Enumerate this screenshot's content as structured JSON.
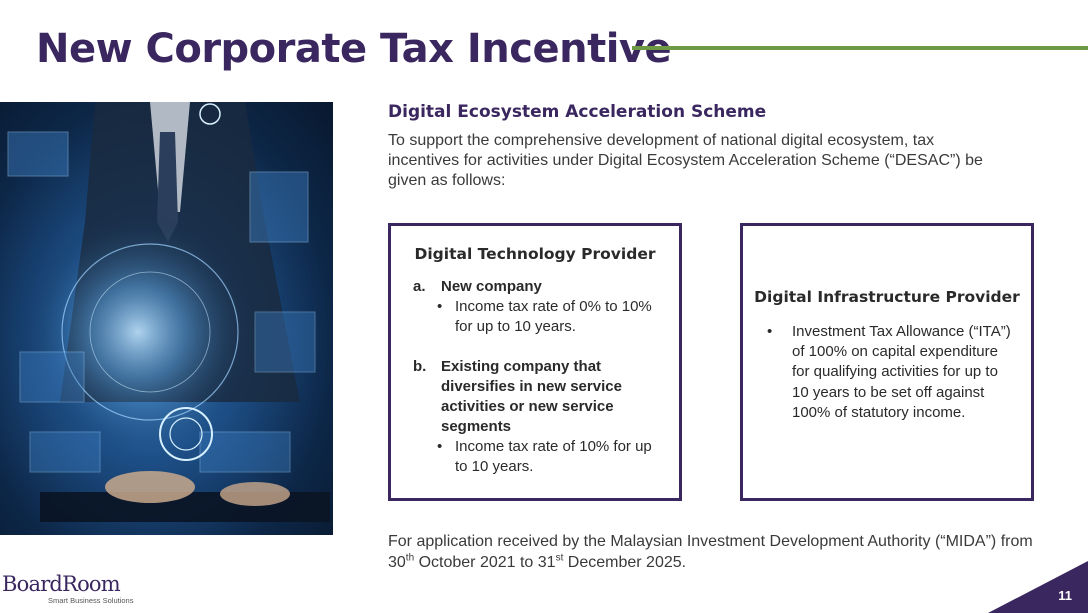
{
  "title": "New Corporate Tax Incentive",
  "subheading": "Digital Ecosystem Acceleration Scheme",
  "intro": "To support the comprehensive development of national digital ecosystem, tax incentives for activities under Digital Ecosystem Acceleration Scheme (“DESAC”) be given as follows:",
  "box_technology": {
    "title": "Digital Technology Provider",
    "item_a": {
      "letter": "a.",
      "heading": "New company",
      "bullet": "Income tax rate of 0% to 10% for up to 10 years."
    },
    "item_b": {
      "letter": "b.",
      "heading": "Existing company that diversifies in new service activities or new service segments",
      "bullet": "Income tax rate of 10% for up to 10 years."
    }
  },
  "box_infrastructure": {
    "title": "Digital Infrastructure Provider",
    "bullet": "Investment Tax Allowance (“ITA”) of 100% on capital expenditure for qualifying activities for up to 10 years to be set off against 100% of statutory income."
  },
  "footer_note": {
    "part1": "For application received by the Malaysian Investment Development Authority (“MIDA”) from 30",
    "sup1": "th",
    "part2": " October 2021 to 31",
    "sup2": "st",
    "part3": " December 2025."
  },
  "logo": {
    "name": "BoardRoom",
    "tagline": "Smart Business Solutions"
  },
  "page_number": "11",
  "bullet_glyph": "•",
  "colors": {
    "brand_purple": "#3b2760",
    "accent_green": "#6f9a45"
  }
}
